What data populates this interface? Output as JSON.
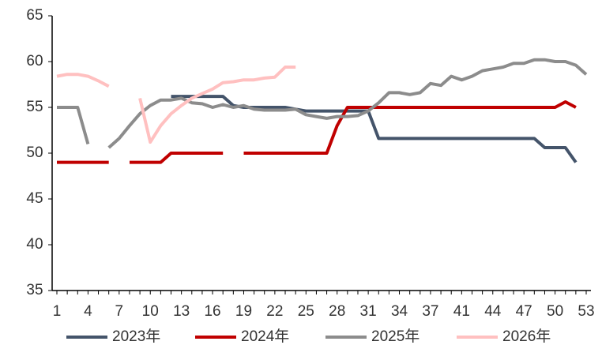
{
  "chart_data": {
    "type": "line",
    "categories": [
      1,
      null,
      null,
      4,
      null,
      null,
      7,
      null,
      null,
      10,
      null,
      null,
      13,
      null,
      null,
      16,
      null,
      null,
      19,
      null,
      null,
      22,
      null,
      null,
      25,
      null,
      null,
      28,
      null,
      null,
      31,
      null,
      null,
      34,
      null,
      null,
      37,
      null,
      null,
      41,
      null,
      null,
      44,
      null,
      null,
      47,
      null,
      null,
      50,
      null,
      null,
      53
    ],
    "ylim": [
      35,
      65
    ],
    "yticks": [
      35,
      40,
      45,
      50,
      55,
      60,
      65
    ],
    "legend": "bottom",
    "series": [
      {
        "name": "2023年",
        "color": "#44546a",
        "values": [
          null,
          null,
          null,
          null,
          null,
          null,
          null,
          null,
          null,
          null,
          null,
          56.2,
          56.2,
          56.2,
          56.2,
          56.2,
          56.2,
          55.2,
          55,
          55,
          55,
          55,
          55,
          54.8,
          54.6,
          54.6,
          54.6,
          54.6,
          54.6,
          54.6,
          54.6,
          51.6,
          51.6,
          51.6,
          51.6,
          51.6,
          51.6,
          51.6,
          51.6,
          51.6,
          51.6,
          51.6,
          51.6,
          51.6,
          51.6,
          51.6,
          51.6,
          50.6,
          50.6,
          50.6,
          49,
          null
        ]
      },
      {
        "name": "2024年",
        "color": "#c00000",
        "values": [
          49,
          49,
          49,
          49,
          49,
          49,
          null,
          49,
          49,
          49,
          49,
          50,
          50,
          50,
          50,
          50,
          50,
          null,
          50,
          50,
          50,
          50,
          50,
          50,
          50,
          50,
          50,
          53,
          55,
          55,
          55,
          55,
          55,
          55,
          55,
          55,
          55,
          55,
          55,
          55,
          55,
          55,
          55,
          55,
          55,
          55,
          55,
          55,
          55,
          55.6,
          55,
          null
        ]
      },
      {
        "name": "2025年",
        "color": "#8c8c8c",
        "values": [
          55,
          55,
          55,
          51,
          null,
          50.6,
          51.6,
          53,
          54.3,
          55.2,
          55.8,
          55.8,
          56,
          55.5,
          55.4,
          55,
          55.3,
          55,
          55.2,
          54.8,
          54.7,
          54.7,
          54.7,
          54.8,
          54.2,
          54,
          53.8,
          54,
          54,
          54.1,
          54.6,
          55.5,
          56.6,
          56.6,
          56.4,
          56.6,
          57.6,
          57.4,
          58.4,
          58,
          58.4,
          59,
          59.2,
          59.4,
          59.8,
          59.8,
          60.2,
          60.2,
          60,
          60,
          59.6,
          58.6
        ]
      },
      {
        "name": "2026年",
        "color": "#ffc0c0",
        "values": [
          58.4,
          58.6,
          58.6,
          58.4,
          57.9,
          57.3,
          null,
          null,
          56,
          51.2,
          53,
          54.3,
          55.2,
          56,
          56.5,
          57,
          57.7,
          57.8,
          58,
          58,
          58.2,
          58.3,
          59.4,
          59.4,
          null,
          null,
          null,
          null,
          null,
          null,
          null,
          null,
          null,
          null,
          null,
          null,
          null,
          null,
          null,
          null,
          null,
          null,
          null,
          null,
          null,
          null,
          null,
          null,
          null,
          null,
          null,
          null
        ]
      }
    ]
  }
}
